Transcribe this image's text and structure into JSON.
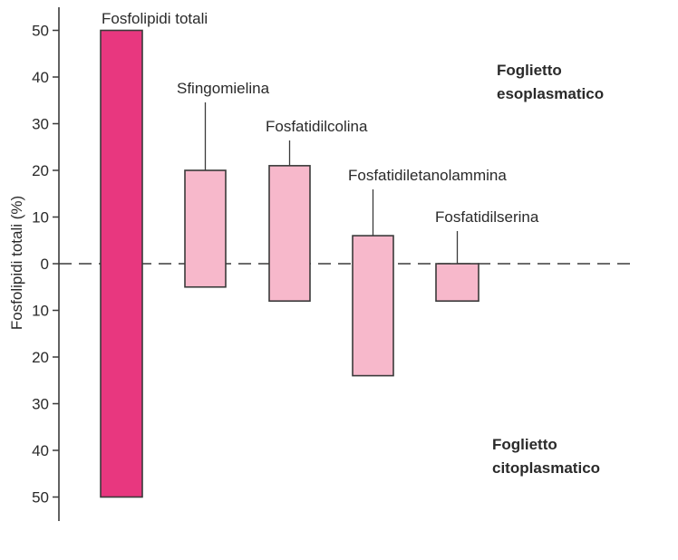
{
  "chart_data": {
    "type": "bar",
    "ylabel": "Fosfolipidi totali (%)",
    "y_ticks": [
      "50",
      "40",
      "30",
      "20",
      "10",
      "0",
      "10",
      "20",
      "30",
      "40",
      "50"
    ],
    "ylim": [
      -50,
      50
    ],
    "grid": false,
    "zero_line": "dashed",
    "annotations": {
      "upper_leaflet": [
        "Foglietto",
        "esoplasmatico"
      ],
      "lower_leaflet": [
        "Foglietto",
        "citoplasmatico"
      ]
    },
    "series": [
      {
        "categories": [
          "Fosfolipidi totali",
          "Sfingomielina",
          "Fosfatidilcolina",
          "Fosfatidiletanolammina",
          "Fosfatidilserina"
        ],
        "exoplasmic": [
          50,
          20,
          21,
          6,
          0
        ],
        "cytoplasmic": [
          50,
          5,
          8,
          24,
          8
        ]
      }
    ],
    "colors": {
      "total": "#e8377f",
      "other": "#f7b8cb",
      "outline": "#3a3a3a"
    }
  }
}
